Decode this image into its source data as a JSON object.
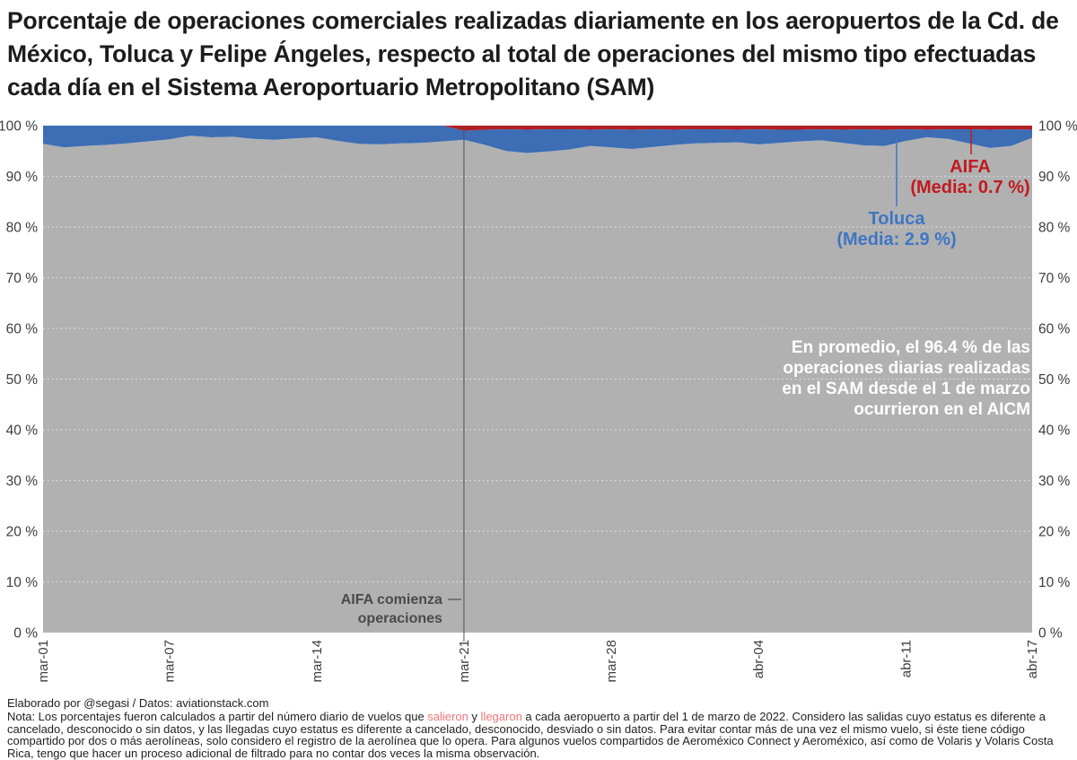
{
  "title": "Porcentaje de operaciones comerciales realizadas diariamente en los aeropuertos de la Cd. de México, Toluca y Felipe Ángeles, respecto al total de operaciones del mismo tipo efectuadas cada día en el Sistema Aeroportuario Metropolitano (SAM)",
  "colors": {
    "background": "#ffffff",
    "title_text": "#1c1c1c",
    "aicm": "#b1b1b1",
    "toluca": "#3c6db5",
    "aifa": "#b11f24",
    "toluca_label": "#3f76c4",
    "aifa_label": "#c01a20",
    "grid": "#ffffff",
    "axis_text": "#3d3d3d",
    "annotation_text": "#4a4a4a",
    "annotation_line": "#4f4f4f",
    "white_note": "#ffffff",
    "note_highlight": "#ee7576",
    "footer_text": "#1f1f1f"
  },
  "chart_data": {
    "type": "area",
    "stacked": true,
    "ylim": [
      0,
      100
    ],
    "grid": "horizontal dotted white lines every 10%",
    "legend_position": "inline annotations",
    "x_range": [
      "mar-01",
      "abr-17"
    ],
    "n_points": 48,
    "x_ticks": [
      {
        "label": "mar-01",
        "day": 0
      },
      {
        "label": "mar-07",
        "day": 6
      },
      {
        "label": "mar-14",
        "day": 13
      },
      {
        "label": "mar-21",
        "day": 20
      },
      {
        "label": "mar-28",
        "day": 27
      },
      {
        "label": "abr-04",
        "day": 34
      },
      {
        "label": "abr-11",
        "day": 41
      },
      {
        "label": "abr-17",
        "day": 47
      }
    ],
    "y_ticks": [
      {
        "value": 0,
        "label": "0 %"
      },
      {
        "value": 10,
        "label": "10 %"
      },
      {
        "value": 20,
        "label": "20 %"
      },
      {
        "value": 30,
        "label": "30 %"
      },
      {
        "value": 40,
        "label": "40 %"
      },
      {
        "value": 50,
        "label": "50 %"
      },
      {
        "value": 60,
        "label": "60 %"
      },
      {
        "value": 70,
        "label": "70 %"
      },
      {
        "value": 80,
        "label": "80 %"
      },
      {
        "value": 90,
        "label": "90 %"
      },
      {
        "value": 100,
        "label": "100 %"
      }
    ],
    "series": [
      {
        "name": "AICM",
        "color_key": "aicm",
        "mean_pct": 96.4,
        "values": [
          96.4,
          95.7,
          96.0,
          96.2,
          96.5,
          96.9,
          97.3,
          98.0,
          97.7,
          97.8,
          97.4,
          97.2,
          97.5,
          97.7,
          97.0,
          96.4,
          96.3,
          96.5,
          96.6,
          96.9,
          97.2,
          96.2,
          95.0,
          94.6,
          94.9,
          95.3,
          96.0,
          95.7,
          95.4,
          95.8,
          96.2,
          96.5,
          96.6,
          96.7,
          96.3,
          96.6,
          96.9,
          97.1,
          96.6,
          96.1,
          96.0,
          97.0,
          97.7,
          97.4,
          96.5,
          95.6,
          96.0,
          97.6
        ]
      },
      {
        "name": "Toluca",
        "color_key": "toluca",
        "mean_pct": 2.9,
        "values": [
          3.6,
          4.3,
          4.0,
          3.8,
          3.5,
          3.1,
          2.7,
          2.0,
          2.3,
          2.2,
          2.6,
          2.8,
          2.5,
          2.3,
          3.0,
          3.6,
          3.7,
          3.5,
          3.4,
          3.1,
          1.8,
          3.0,
          4.3,
          4.6,
          4.4,
          4.0,
          3.2,
          3.6,
          3.8,
          3.5,
          3.0,
          2.8,
          2.7,
          2.5,
          3.0,
          2.6,
          2.3,
          2.2,
          2.6,
          3.2,
          3.2,
          2.3,
          1.5,
          1.9,
          2.8,
          3.6,
          3.3,
          1.6
        ]
      },
      {
        "name": "AIFA",
        "color_key": "aifa",
        "mean_pct": 0.7,
        "values": [
          0,
          0,
          0,
          0,
          0,
          0,
          0,
          0,
          0,
          0,
          0,
          0,
          0,
          0,
          0,
          0,
          0,
          0,
          0,
          0,
          1.0,
          0.8,
          0.7,
          0.8,
          0.7,
          0.7,
          0.8,
          0.7,
          0.8,
          0.7,
          0.8,
          0.7,
          0.7,
          0.8,
          0.7,
          0.8,
          0.8,
          0.7,
          0.8,
          0.7,
          0.8,
          0.7,
          0.8,
          0.7,
          0.7,
          0.8,
          0.7,
          0.8
        ]
      }
    ],
    "annotations": {
      "aifa_start": {
        "day": 20,
        "lines": [
          "AIFA comienza",
          "operaciones"
        ]
      },
      "toluca_label": {
        "lines": [
          "Toluca",
          "(Media: 2.9 %)"
        ]
      },
      "aifa_label": {
        "lines": [
          "AIFA",
          "(Media: 0.7 %)"
        ]
      },
      "aicm_note": {
        "lines": [
          "En promedio, el 96.4 % de las",
          "operaciones diarias realizadas",
          "en el SAM desde el 1 de marzo",
          "ocurrieron en el AICM"
        ]
      }
    }
  },
  "footer": {
    "credit": "Elaborado por @segasi / Datos: aviationstack.com",
    "note_segments": [
      {
        "t": "Nota: Los porcentajes fueron calculados a partir del número diario de vuelos que "
      },
      {
        "t": "salieron",
        "c": "highlight"
      },
      {
        "t": " y "
      },
      {
        "t": "llegaron",
        "c": "highlight"
      },
      {
        "t": " a cada aeropuerto a partir del 1 de marzo de 2022. Considero las salidas cuyo estatus es diferente a cancelado, desconocido o sin datos, y las llegadas cuyo estatus es diferente a cancelado, desconocido, desviado o sin datos. Para evitar contar más de una vez el mismo vuelo, si éste tiene código compartido por dos o más aerolíneas, solo considero el registro de la aerolínea que lo opera. Para algunos vuelos compartidos de Aeroméxico Connect y Aeroméxico, así como de Volaris y Volaris Costa Rica, tengo que hacer un proceso adicional de filtrado para no contar dos veces la misma observación."
      }
    ]
  }
}
